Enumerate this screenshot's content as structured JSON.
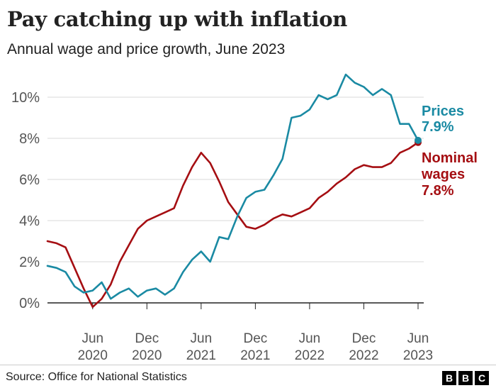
{
  "header": {
    "title": "Pay catching up with inflation",
    "subtitle": "Annual wage and price growth, June 2023"
  },
  "footer": {
    "source": "Source: Office for National Statistics",
    "logo": [
      "B",
      "B",
      "C"
    ]
  },
  "colors": {
    "prices": "#1a8aa3",
    "wages": "#a50e12",
    "grid": "#d9d9d9",
    "axis": "#222222",
    "text": "#222222"
  },
  "chart_data": {
    "type": "line",
    "title": "Pay catching up with inflation",
    "subtitle": "Annual wage and price growth, June 2023",
    "xlabel": "",
    "ylabel": "",
    "ylim": [
      0,
      10
    ],
    "yticks": [
      {
        "value": 0,
        "label": "0%"
      },
      {
        "value": 2,
        "label": "2%"
      },
      {
        "value": 4,
        "label": "4%"
      },
      {
        "value": 6,
        "label": "6%"
      },
      {
        "value": 8,
        "label": "8%"
      },
      {
        "value": 10,
        "label": "10%"
      }
    ],
    "xticks": [
      {
        "index": 5,
        "line1": "Jun",
        "line2": "2020"
      },
      {
        "index": 11,
        "line1": "Dec",
        "line2": "2020"
      },
      {
        "index": 17,
        "line1": "Jun",
        "line2": "2021"
      },
      {
        "index": 23,
        "line1": "Dec",
        "line2": "2021"
      },
      {
        "index": 29,
        "line1": "Jun",
        "line2": "2022"
      },
      {
        "index": 35,
        "line1": "Dec",
        "line2": "2022"
      },
      {
        "index": 41,
        "line1": "Jun",
        "line2": "2023"
      }
    ],
    "x_start": "Jan 2020",
    "x_end": "Jun 2023",
    "series": [
      {
        "name": "Prices",
        "label_value": "7.9%",
        "values": [
          1.8,
          1.7,
          1.5,
          0.8,
          0.5,
          0.6,
          1.0,
          0.2,
          0.5,
          0.7,
          0.3,
          0.6,
          0.7,
          0.4,
          0.7,
          1.5,
          2.1,
          2.5,
          2.0,
          3.2,
          3.1,
          4.2,
          5.1,
          5.4,
          5.5,
          6.2,
          7.0,
          9.0,
          9.1,
          9.4,
          10.1,
          9.9,
          10.1,
          11.1,
          10.7,
          10.5,
          10.1,
          10.4,
          10.1,
          8.7,
          8.7,
          7.9
        ]
      },
      {
        "name": "Nominal wages",
        "label_line1": "Nominal",
        "label_line2": "wages",
        "label_value": "7.8%",
        "values": [
          3.0,
          2.9,
          2.7,
          1.7,
          0.7,
          -0.2,
          0.2,
          0.9,
          2.0,
          2.8,
          3.6,
          4.0,
          4.2,
          4.4,
          4.6,
          5.7,
          6.6,
          7.3,
          6.8,
          5.9,
          4.9,
          4.3,
          3.7,
          3.6,
          3.8,
          4.1,
          4.3,
          4.2,
          4.4,
          4.6,
          5.1,
          5.4,
          5.8,
          6.1,
          6.5,
          6.7,
          6.6,
          6.6,
          6.8,
          7.3,
          7.5,
          7.8
        ]
      }
    ]
  }
}
